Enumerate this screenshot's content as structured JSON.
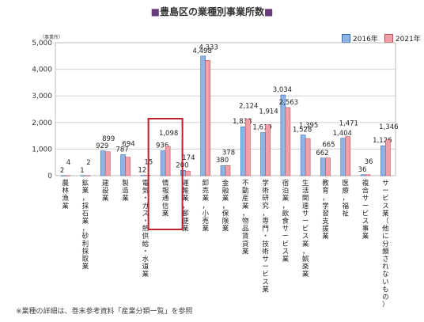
{
  "chart_data": {
    "type": "bar",
    "title": "豊島区の業種別事業所数",
    "unit": "（事業所）",
    "ylim": [
      0,
      5000
    ],
    "yticks": [
      "0",
      "1,000",
      "2,000",
      "3,000",
      "4,000",
      "5,000"
    ],
    "legend_position": "top-right",
    "categories": [
      "農林漁業",
      "鉱業，採石業，砂利採取業",
      "建設業",
      "製造業",
      "電気・ガス・熱供給・水道業",
      "情報通信業",
      "運輸業，郵便業",
      "卸売業，小売業",
      "金融業，保険業",
      "不動産業，物品賃貸業",
      "学術研究，専門・技術サービス業",
      "宿泊業，飲食サービス業",
      "生活関連サービス業，娯楽業",
      "教育，学習支援業",
      "医療，福祉",
      "複合サービス事業",
      "サービス業（他に分類されないもの）"
    ],
    "series": [
      {
        "name": "2016年",
        "color": "#8eb4e3",
        "values": [
          2,
          1,
          929,
          787,
          12,
          936,
          200,
          4498,
          380,
          1838,
          1619,
          3034,
          1528,
          662,
          1404,
          36,
          1126
        ],
        "labels": [
          "2",
          "1",
          "929",
          "787",
          "12",
          "936",
          "200",
          "4,498",
          "380",
          "1,838",
          "1,619",
          "3,034",
          "1,528",
          "662",
          "1,404",
          "36",
          "1,126"
        ]
      },
      {
        "name": "2021年",
        "color": "#f2a0a8",
        "values": [
          4,
          2,
          899,
          694,
          15,
          1098,
          174,
          4333,
          378,
          2124,
          1914,
          2563,
          1395,
          665,
          1471,
          36,
          1346
        ],
        "labels": [
          "4",
          "2",
          "899",
          "694",
          "15",
          "1,098",
          "174",
          "4,333",
          "378",
          "2,124",
          "1,914",
          "2,563",
          "1,395",
          "665",
          "1,471",
          "36",
          "1,346"
        ]
      }
    ],
    "highlight_category": "情報通信業",
    "highlight_color": "#c0202a"
  },
  "footnote": "※業種の詳細は、巻末参考資料「産業分類一覧」を参照"
}
